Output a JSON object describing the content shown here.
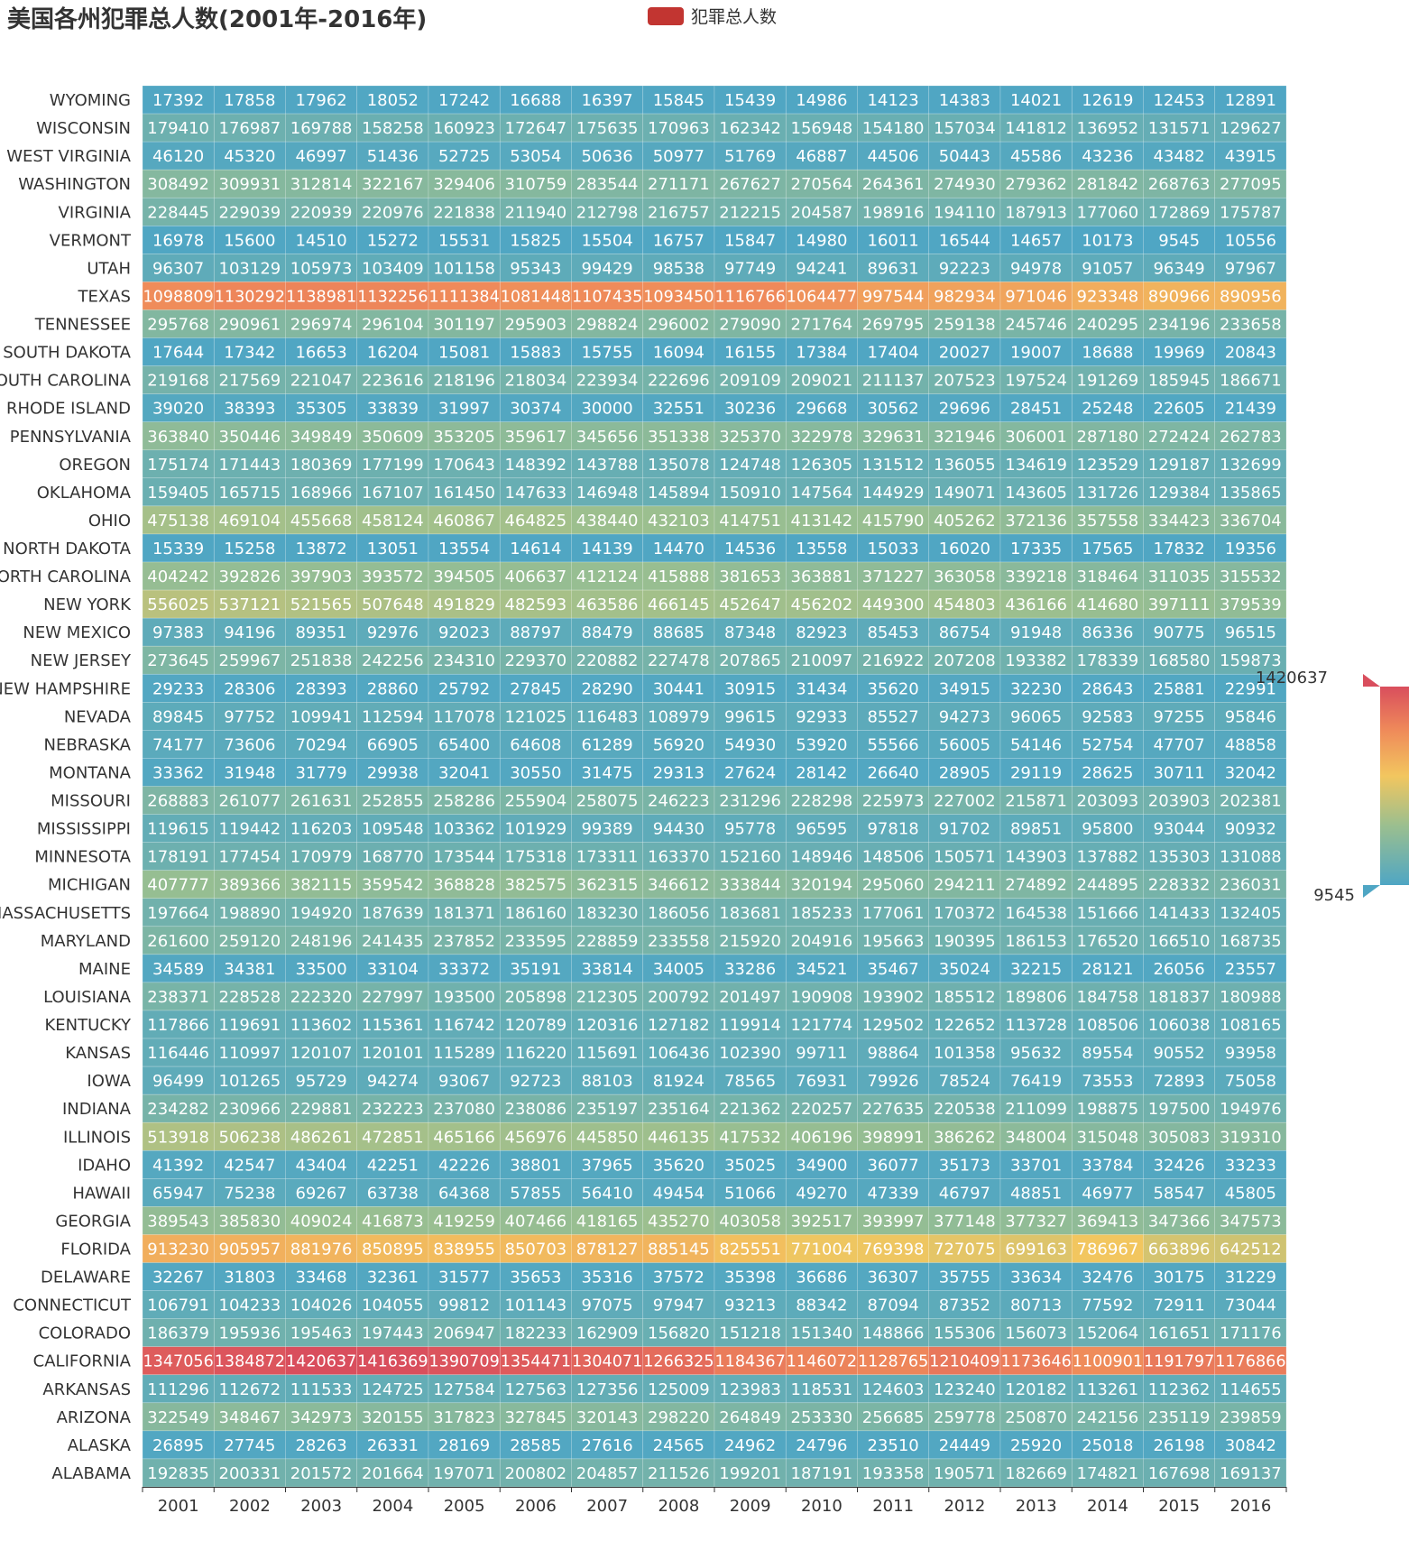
{
  "chart_data": {
    "type": "heatmap",
    "title": "美国各州犯罪总人数(2001年-2016年)",
    "legend": {
      "items": [
        "犯罪总人数"
      ],
      "color": "#c23531",
      "position": "top-center"
    },
    "visual_map": {
      "min": 9545,
      "max": 1420637,
      "colors": [
        "#4fa6c4",
        "#9bbf8f",
        "#f2c65f",
        "#ef8a5a",
        "#d94e5d"
      ]
    },
    "x_categories": [
      "2001",
      "2002",
      "2003",
      "2004",
      "2005",
      "2006",
      "2007",
      "2008",
      "2009",
      "2010",
      "2011",
      "2012",
      "2013",
      "2014",
      "2015",
      "2016"
    ],
    "y_categories": [
      "WYOMING",
      "WISCONSIN",
      "WEST VIRGINIA",
      "WASHINGTON",
      "VIRGINIA",
      "VERMONT",
      "UTAH",
      "TEXAS",
      "TENNESSEE",
      "SOUTH DAKOTA",
      "SOUTH CAROLINA",
      "RHODE ISLAND",
      "PENNSYLVANIA",
      "OREGON",
      "OKLAHOMA",
      "OHIO",
      "NORTH DAKOTA",
      "NORTH CAROLINA",
      "NEW YORK",
      "NEW MEXICO",
      "NEW JERSEY",
      "NEW HAMPSHIRE",
      "NEVADA",
      "NEBRASKA",
      "MONTANA",
      "MISSOURI",
      "MISSISSIPPI",
      "MINNESOTA",
      "MICHIGAN",
      "MASSACHUSETTS",
      "MARYLAND",
      "MAINE",
      "LOUISIANA",
      "KENTUCKY",
      "KANSAS",
      "IOWA",
      "INDIANA",
      "ILLINOIS",
      "IDAHO",
      "HAWAII",
      "GEORGIA",
      "FLORIDA",
      "DELAWARE",
      "CONNECTICUT",
      "COLORADO",
      "CALIFORNIA",
      "ARKANSAS",
      "ARIZONA",
      "ALASKA",
      "ALABAMA"
    ],
    "values": [
      [
        17392,
        17858,
        17962,
        18052,
        17242,
        16688,
        16397,
        15845,
        15439,
        14986,
        14123,
        14383,
        14021,
        12619,
        12453,
        12891
      ],
      [
        179410,
        176987,
        169788,
        158258,
        160923,
        172647,
        175635,
        170963,
        162342,
        156948,
        154180,
        157034,
        141812,
        136952,
        131571,
        129627
      ],
      [
        46120,
        45320,
        46997,
        51436,
        52725,
        53054,
        50636,
        50977,
        51769,
        46887,
        44506,
        50443,
        45586,
        43236,
        43482,
        43915
      ],
      [
        308492,
        309931,
        312814,
        322167,
        329406,
        310759,
        283544,
        271171,
        267627,
        270564,
        264361,
        274930,
        279362,
        281842,
        268763,
        277095
      ],
      [
        228445,
        229039,
        220939,
        220976,
        221838,
        211940,
        212798,
        216757,
        212215,
        204587,
        198916,
        194110,
        187913,
        177060,
        172869,
        175787
      ],
      [
        16978,
        15600,
        14510,
        15272,
        15531,
        15825,
        15504,
        16757,
        15847,
        14980,
        16011,
        16544,
        14657,
        10173,
        9545,
        10556
      ],
      [
        96307,
        103129,
        105973,
        103409,
        101158,
        95343,
        99429,
        98538,
        97749,
        94241,
        89631,
        92223,
        94978,
        91057,
        96349,
        97967
      ],
      [
        1098809,
        1130292,
        1138981,
        1132256,
        1111384,
        1081448,
        1107435,
        1093450,
        1116766,
        1064477,
        997544,
        982934,
        971046,
        923348,
        890966,
        890956
      ],
      [
        295768,
        290961,
        296974,
        296104,
        301197,
        295903,
        298824,
        296002,
        279090,
        271764,
        269795,
        259138,
        245746,
        240295,
        234196,
        233658
      ],
      [
        17644,
        17342,
        16653,
        16204,
        15081,
        15883,
        15755,
        16094,
        16155,
        17384,
        17404,
        20027,
        19007,
        18688,
        19969,
        20843
      ],
      [
        219168,
        217569,
        221047,
        223616,
        218196,
        218034,
        223934,
        222696,
        209109,
        209021,
        211137,
        207523,
        197524,
        191269,
        185945,
        186671
      ],
      [
        39020,
        38393,
        35305,
        33839,
        31997,
        30374,
        30000,
        32551,
        30236,
        29668,
        30562,
        29696,
        28451,
        25248,
        22605,
        21439
      ],
      [
        363840,
        350446,
        349849,
        350609,
        353205,
        359617,
        345656,
        351338,
        325370,
        322978,
        329631,
        321946,
        306001,
        287180,
        272424,
        262783
      ],
      [
        175174,
        171443,
        180369,
        177199,
        170643,
        148392,
        143788,
        135078,
        124748,
        126305,
        131512,
        136055,
        134619,
        123529,
        129187,
        132699
      ],
      [
        159405,
        165715,
        168966,
        167107,
        161450,
        147633,
        146948,
        145894,
        150910,
        147564,
        144929,
        149071,
        143605,
        131726,
        129384,
        135865
      ],
      [
        475138,
        469104,
        455668,
        458124,
        460867,
        464825,
        438440,
        432103,
        414751,
        413142,
        415790,
        405262,
        372136,
        357558,
        334423,
        336704
      ],
      [
        15339,
        15258,
        13872,
        13051,
        13554,
        14614,
        14139,
        14470,
        14536,
        13558,
        15033,
        16020,
        17335,
        17565,
        17832,
        19356
      ],
      [
        404242,
        392826,
        397903,
        393572,
        394505,
        406637,
        412124,
        415888,
        381653,
        363881,
        371227,
        363058,
        339218,
        318464,
        311035,
        315532
      ],
      [
        556025,
        537121,
        521565,
        507648,
        491829,
        482593,
        463586,
        466145,
        452647,
        456202,
        449300,
        454803,
        436166,
        414680,
        397111,
        379539
      ],
      [
        97383,
        94196,
        89351,
        92976,
        92023,
        88797,
        88479,
        88685,
        87348,
        82923,
        85453,
        86754,
        91948,
        86336,
        90775,
        96515
      ],
      [
        273645,
        259967,
        251838,
        242256,
        234310,
        229370,
        220882,
        227478,
        207865,
        210097,
        216922,
        207208,
        193382,
        178339,
        168580,
        159873
      ],
      [
        29233,
        28306,
        28393,
        28860,
        25792,
        27845,
        28290,
        30441,
        30915,
        31434,
        35620,
        34915,
        32230,
        28643,
        25881,
        22991
      ],
      [
        89845,
        97752,
        109941,
        112594,
        117078,
        121025,
        116483,
        108979,
        99615,
        92933,
        85527,
        94273,
        96065,
        92583,
        97255,
        95846
      ],
      [
        74177,
        73606,
        70294,
        66905,
        65400,
        64608,
        61289,
        56920,
        54930,
        53920,
        55566,
        56005,
        54146,
        52754,
        47707,
        48858
      ],
      [
        33362,
        31948,
        31779,
        29938,
        32041,
        30550,
        31475,
        29313,
        27624,
        28142,
        26640,
        28905,
        29119,
        28625,
        30711,
        32042
      ],
      [
        268883,
        261077,
        261631,
        252855,
        258286,
        255904,
        258075,
        246223,
        231296,
        228298,
        225973,
        227002,
        215871,
        203093,
        203903,
        202381
      ],
      [
        119615,
        119442,
        116203,
        109548,
        103362,
        101929,
        99389,
        94430,
        95778,
        96595,
        97818,
        91702,
        89851,
        95800,
        93044,
        90932
      ],
      [
        178191,
        177454,
        170979,
        168770,
        173544,
        175318,
        173311,
        163370,
        152160,
        148946,
        148506,
        150571,
        143903,
        137882,
        135303,
        131088
      ],
      [
        407777,
        389366,
        382115,
        359542,
        368828,
        382575,
        362315,
        346612,
        333844,
        320194,
        295060,
        294211,
        274892,
        244895,
        228332,
        236031
      ],
      [
        197664,
        198890,
        194920,
        187639,
        181371,
        186160,
        183230,
        186056,
        183681,
        185233,
        177061,
        170372,
        164538,
        151666,
        141433,
        132405
      ],
      [
        261600,
        259120,
        248196,
        241435,
        237852,
        233595,
        228859,
        233558,
        215920,
        204916,
        195663,
        190395,
        186153,
        176520,
        166510,
        168735
      ],
      [
        34589,
        34381,
        33500,
        33104,
        33372,
        35191,
        33814,
        34005,
        33286,
        34521,
        35467,
        35024,
        32215,
        28121,
        26056,
        23557
      ],
      [
        238371,
        228528,
        222320,
        227997,
        193500,
        205898,
        212305,
        200792,
        201497,
        190908,
        193902,
        185512,
        189806,
        184758,
        181837,
        180988
      ],
      [
        117866,
        119691,
        113602,
        115361,
        116742,
        120789,
        120316,
        127182,
        119914,
        121774,
        129502,
        122652,
        113728,
        108506,
        106038,
        108165
      ],
      [
        116446,
        110997,
        120107,
        120101,
        115289,
        116220,
        115691,
        106436,
        102390,
        99711,
        98864,
        101358,
        95632,
        89554,
        90552,
        93958
      ],
      [
        96499,
        101265,
        95729,
        94274,
        93067,
        92723,
        88103,
        81924,
        78565,
        76931,
        79926,
        78524,
        76419,
        73553,
        72893,
        75058
      ],
      [
        234282,
        230966,
        229881,
        232223,
        237080,
        238086,
        235197,
        235164,
        221362,
        220257,
        227635,
        220538,
        211099,
        198875,
        197500,
        194976
      ],
      [
        513918,
        506238,
        486261,
        472851,
        465166,
        456976,
        445850,
        446135,
        417532,
        406196,
        398991,
        386262,
        348004,
        315048,
        305083,
        319310
      ],
      [
        41392,
        42547,
        43404,
        42251,
        42226,
        38801,
        37965,
        35620,
        35025,
        34900,
        36077,
        35173,
        33701,
        33784,
        32426,
        33233
      ],
      [
        65947,
        75238,
        69267,
        63738,
        64368,
        57855,
        56410,
        49454,
        51066,
        49270,
        47339,
        46797,
        48851,
        46977,
        58547,
        45805
      ],
      [
        389543,
        385830,
        409024,
        416873,
        419259,
        407466,
        418165,
        435270,
        403058,
        392517,
        393997,
        377148,
        377327,
        369413,
        347366,
        347573
      ],
      [
        913230,
        905957,
        881976,
        850895,
        838955,
        850703,
        878127,
        885145,
        825551,
        771004,
        769398,
        727075,
        699163,
        786967,
        663896,
        642512
      ],
      [
        32267,
        31803,
        33468,
        32361,
        31577,
        35653,
        35316,
        37572,
        35398,
        36686,
        36307,
        35755,
        33634,
        32476,
        30175,
        31229
      ],
      [
        106791,
        104233,
        104026,
        104055,
        99812,
        101143,
        97075,
        97947,
        93213,
        88342,
        87094,
        87352,
        80713,
        77592,
        72911,
        73044
      ],
      [
        186379,
        195936,
        195463,
        197443,
        206947,
        182233,
        162909,
        156820,
        151218,
        151340,
        148866,
        155306,
        156073,
        152064,
        161651,
        171176
      ],
      [
        1347056,
        1384872,
        1420637,
        1416369,
        1390709,
        1354471,
        1304071,
        1266325,
        1184367,
        1146072,
        1128765,
        1210409,
        1173646,
        1100901,
        1191797,
        1176866
      ],
      [
        111296,
        112672,
        111533,
        124725,
        127584,
        127563,
        127356,
        125009,
        123983,
        118531,
        124603,
        123240,
        120182,
        113261,
        112362,
        114655
      ],
      [
        322549,
        348467,
        342973,
        320155,
        317823,
        327845,
        320143,
        298220,
        264849,
        253330,
        256685,
        259778,
        250870,
        242156,
        235119,
        239859
      ],
      [
        26895,
        27745,
        28263,
        26331,
        28169,
        28585,
        27616,
        24565,
        24962,
        24796,
        23510,
        24449,
        25920,
        25018,
        26198,
        30842
      ],
      [
        192835,
        200331,
        201572,
        201664,
        197071,
        200802,
        204857,
        211526,
        199201,
        187191,
        193358,
        190571,
        182669,
        174821,
        167698,
        169137
      ]
    ]
  }
}
